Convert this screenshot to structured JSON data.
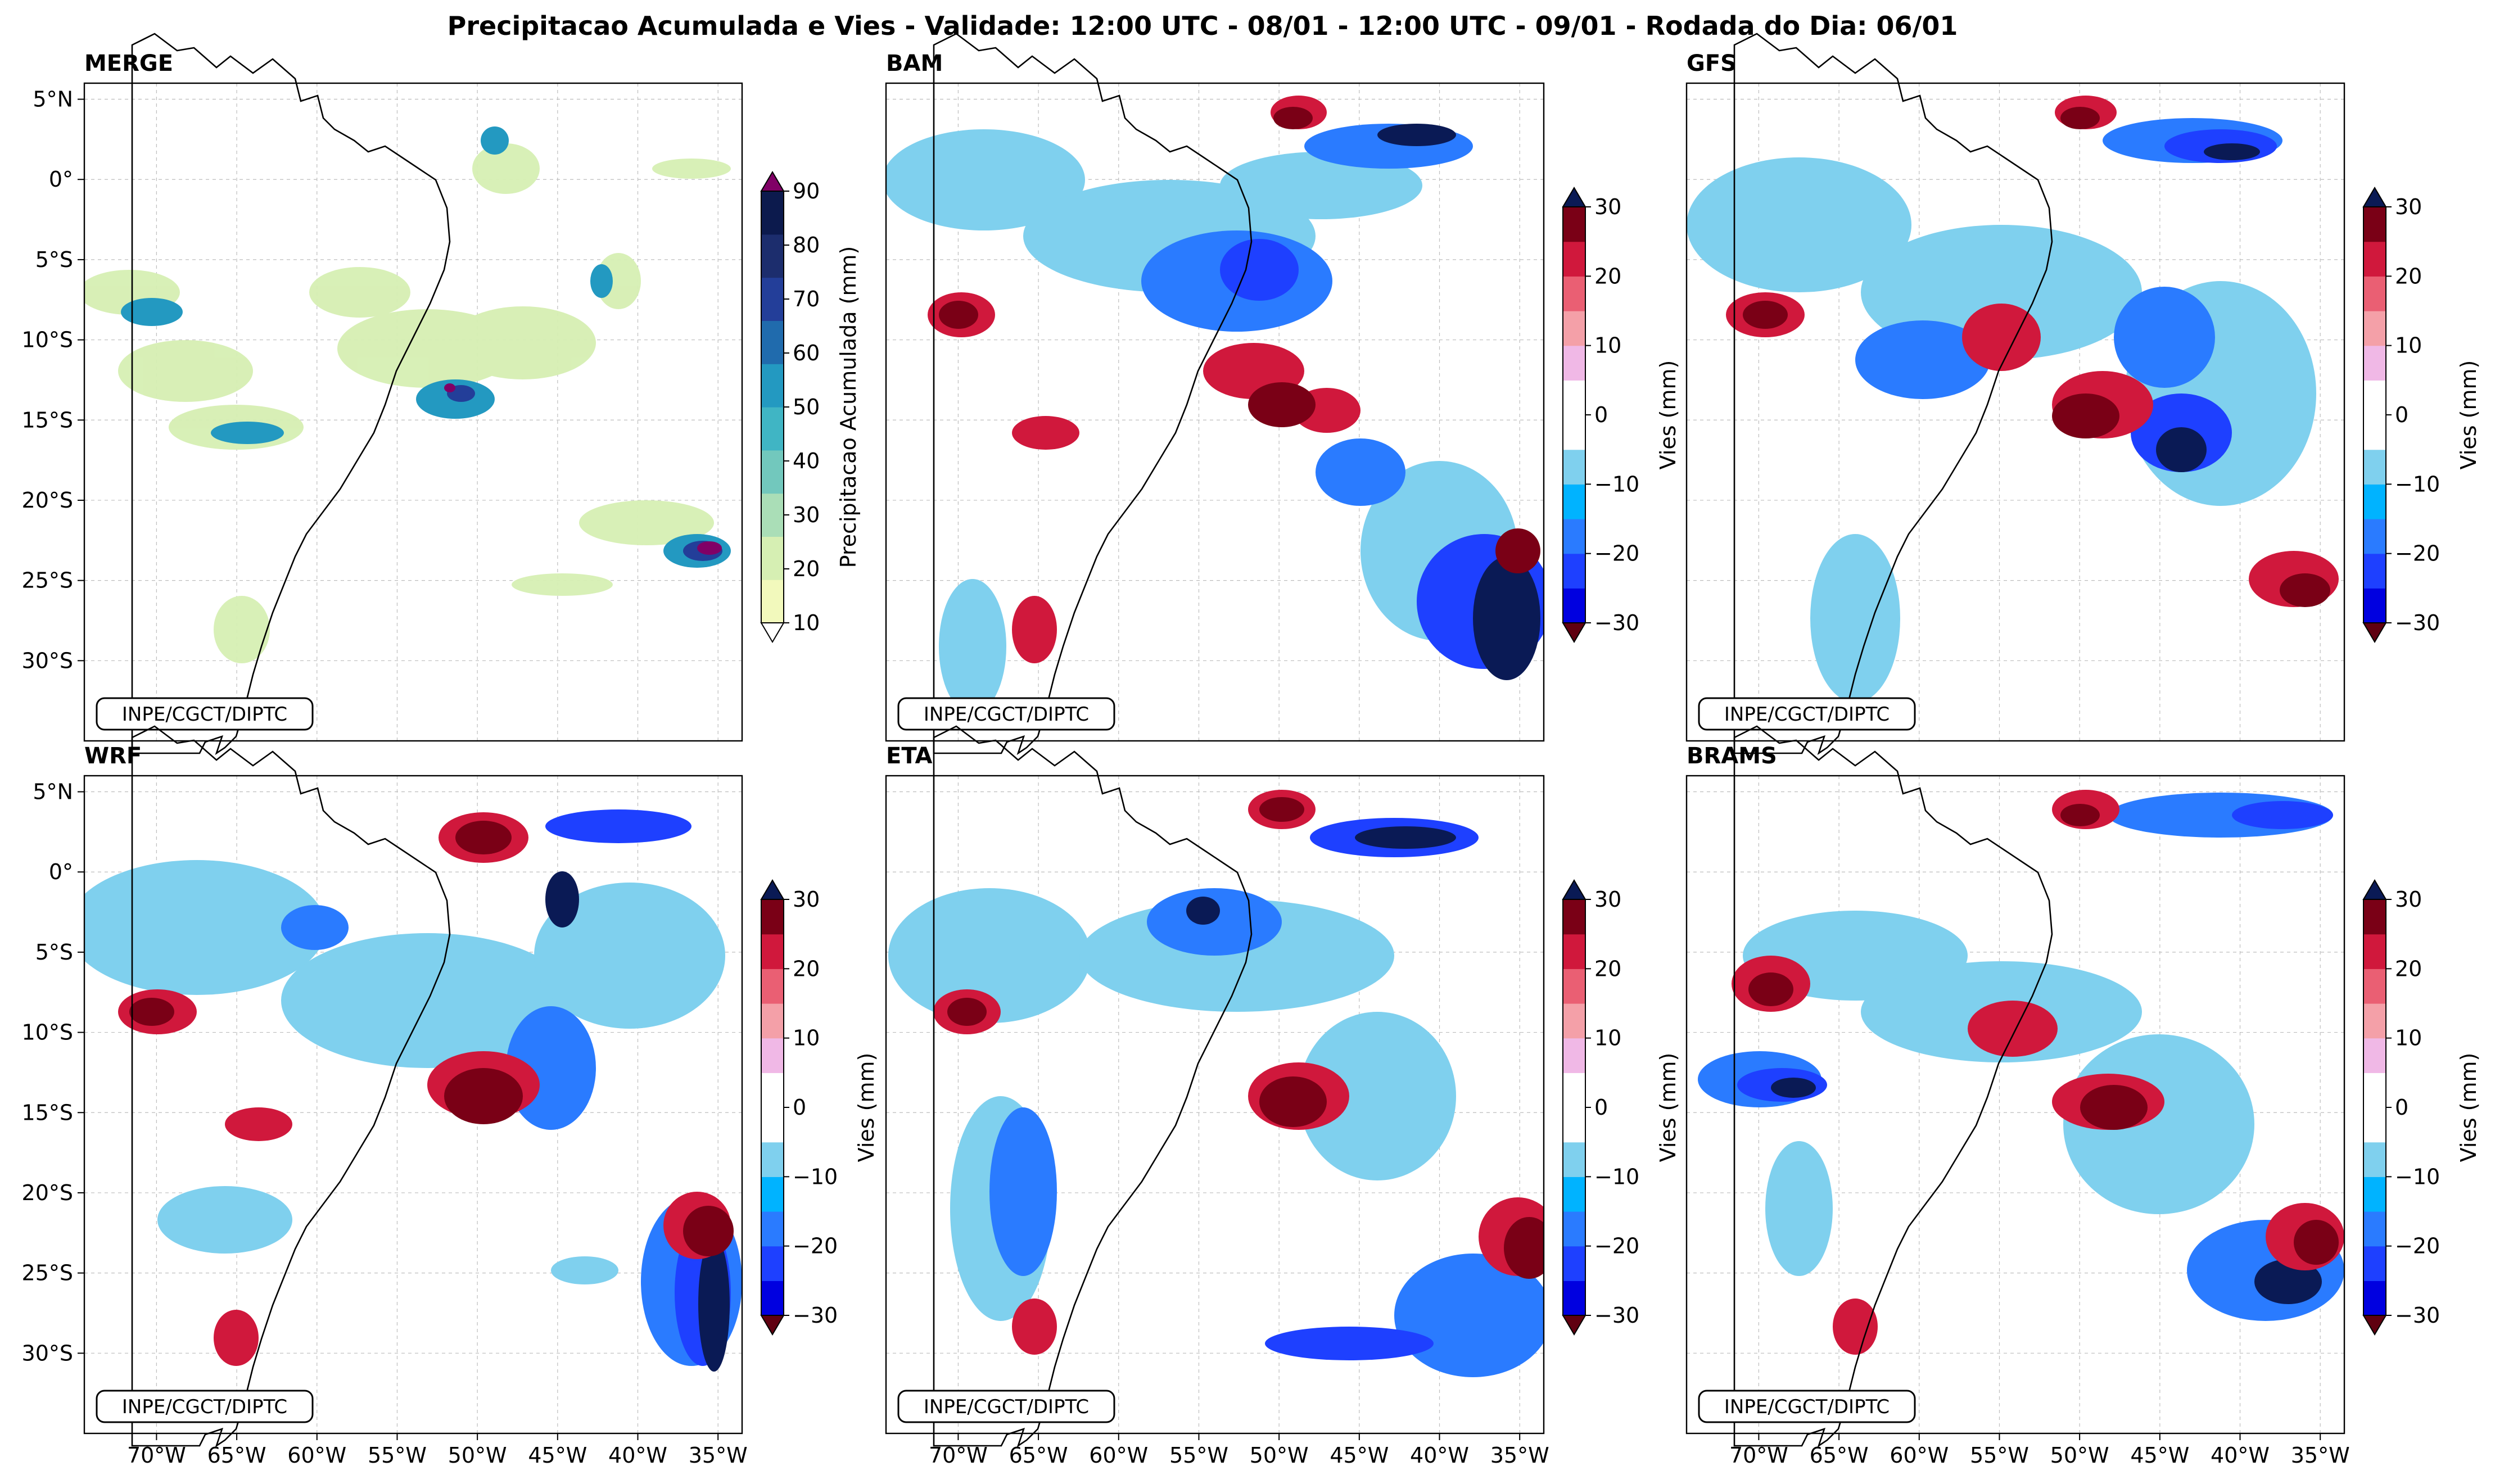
{
  "figure": {
    "title": "Precipitacao Acumulada e Vies - Validade: 12:00 UTC - 08/01 - 12:00 UTC - 09/01 - Rodada do Dia: 06/01",
    "credit": "INPE/CGCT/DIPTC"
  },
  "axes": {
    "lat_ticks": [
      "5°N",
      "0°",
      "5°S",
      "10°S",
      "15°S",
      "20°S",
      "25°S",
      "30°S"
    ],
    "lon_ticks": [
      "70°W",
      "65°W",
      "60°W",
      "55°W",
      "50°W",
      "45°W",
      "40°W",
      "35°W"
    ],
    "lat_values": [
      5,
      0,
      -5,
      -10,
      -15,
      -20,
      -25,
      -30
    ],
    "lon_values": [
      -70,
      -65,
      -60,
      -55,
      -50,
      -45,
      -40,
      -35
    ],
    "extent": {
      "lon": [
        -74.5,
        -33.5
      ],
      "lat": [
        -35.0,
        6.0
      ]
    }
  },
  "colorbars": {
    "precip": {
      "label": "Precipitacao Acumulada (mm)",
      "ticks": [
        "10",
        "20",
        "30",
        "40",
        "50",
        "60",
        "70",
        "80",
        "90"
      ],
      "colors": [
        "#f2f9bc",
        "#d6efb3",
        "#aadeb7",
        "#72c8bd",
        "#40b5c4",
        "#2399c1",
        "#206bad",
        "#233e99",
        "#1c2d6d",
        "#0c1a4d"
      ],
      "over": "#800066"
    },
    "bias": {
      "label": "Vies (mm)",
      "ticks": [
        "30",
        "20",
        "10",
        "0",
        "−10",
        "−20",
        "−30"
      ],
      "colors": [
        "#0000e0",
        "#1e40ff",
        "#2a7bff",
        "#00b3ff",
        "#7fd0ee",
        "#ffffff",
        "#ffffff",
        "#f0b8e6",
        "#f4a0a8",
        "#ea5f73",
        "#d0183c",
        "#7a0016"
      ],
      "over": "#0a1a55",
      "under": "#600010"
    }
  },
  "panels": [
    {
      "title": "MERGE",
      "variable": "precip"
    },
    {
      "title": "BAM",
      "variable": "bias"
    },
    {
      "title": "GFS",
      "variable": "bias"
    },
    {
      "title": "WRF",
      "variable": "bias"
    },
    {
      "title": "ETA",
      "variable": "bias"
    },
    {
      "title": "BRAMS",
      "variable": "bias"
    }
  ]
}
